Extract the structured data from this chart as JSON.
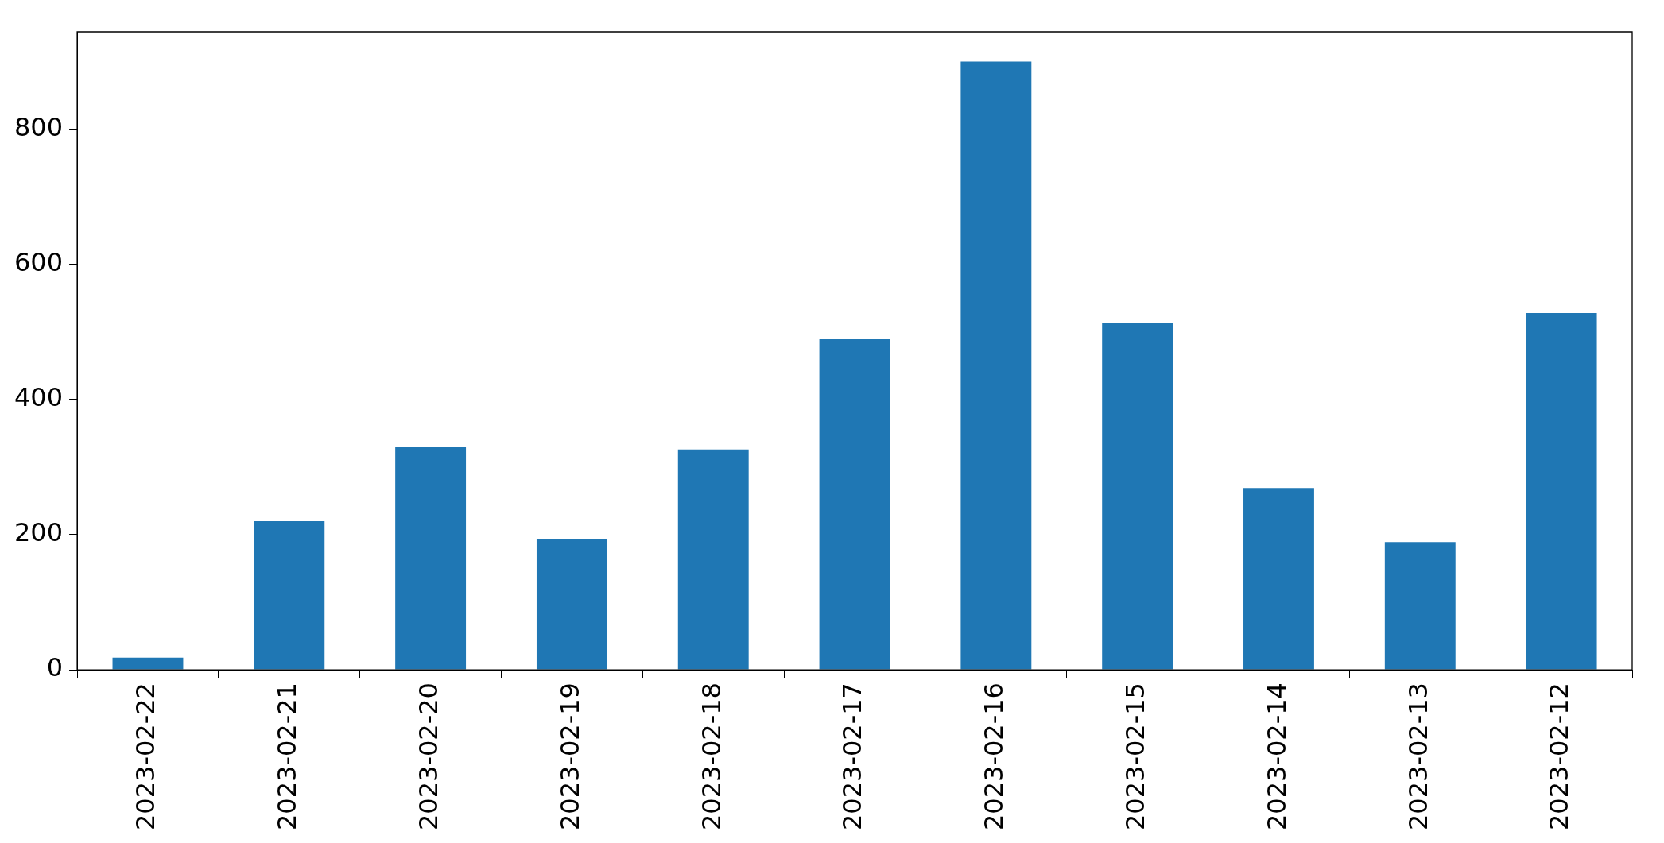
{
  "chart_data": {
    "type": "bar",
    "categories": [
      "2023-02-22",
      "2023-02-21",
      "2023-02-20",
      "2023-02-19",
      "2023-02-18",
      "2023-02-17",
      "2023-02-16",
      "2023-02-15",
      "2023-02-14",
      "2023-02-13",
      "2023-02-12"
    ],
    "values": [
      18,
      220,
      330,
      193,
      326,
      489,
      900,
      513,
      269,
      189,
      528
    ],
    "color": "#1f77b4",
    "ylim": [
      0,
      944
    ],
    "yticks": [
      0,
      200,
      400,
      600,
      800
    ],
    "grid": false,
    "legend": false
  }
}
